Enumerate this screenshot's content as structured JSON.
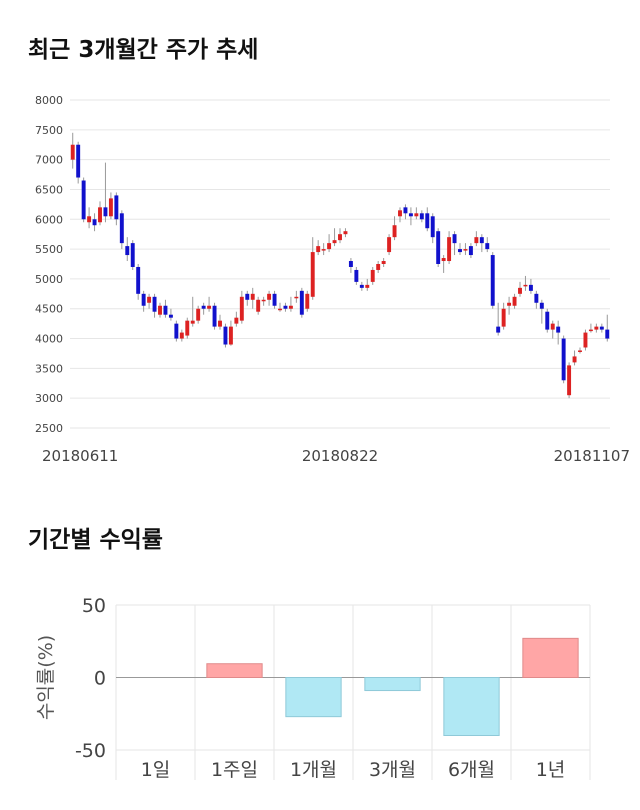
{
  "sections": {
    "price_title": "최근 3개월간 주가 추세",
    "returns_title": "기간별 수익률"
  },
  "chart_data": [
    {
      "type": "candlestick",
      "ylim": [
        2500,
        8000
      ],
      "y_ticks": [
        2500,
        3000,
        3500,
        4000,
        4500,
        5000,
        5500,
        6000,
        6500,
        7000,
        7500,
        8000
      ],
      "x_ticks": [
        "20180611",
        "20180822",
        "20181107"
      ],
      "up_color": "#dd2222",
      "down_color": "#1111cc",
      "candles": [
        [
          7000,
          7250,
          7450,
          6850
        ],
        [
          7250,
          6700,
          7300,
          6600
        ],
        [
          6650,
          6000,
          6700,
          5950
        ],
        [
          5950,
          6050,
          6200,
          5850
        ],
        [
          6000,
          5900,
          6100,
          5800
        ],
        [
          5950,
          6200,
          6300,
          5900
        ],
        [
          6200,
          6050,
          6950,
          5950
        ],
        [
          6050,
          6350,
          6450,
          6000
        ],
        [
          6400,
          6000,
          6450,
          5900
        ],
        [
          6100,
          5600,
          6150,
          5500
        ],
        [
          5550,
          5400,
          5700,
          5300
        ],
        [
          5600,
          5200,
          5650,
          5150
        ],
        [
          5200,
          4750,
          5250,
          4650
        ],
        [
          4750,
          4550,
          4800,
          4450
        ],
        [
          4600,
          4700,
          4750,
          4500
        ],
        [
          4700,
          4450,
          4750,
          4350
        ],
        [
          4400,
          4550,
          4600,
          4350
        ],
        [
          4550,
          4400,
          4650,
          4350
        ],
        [
          4400,
          4350,
          4500,
          4300
        ],
        [
          4250,
          4000,
          4300,
          3950
        ],
        [
          4000,
          4100,
          4150,
          3950
        ],
        [
          4050,
          4300,
          4350,
          4000
        ],
        [
          4250,
          4300,
          4700,
          4200
        ],
        [
          4300,
          4500,
          4550,
          4250
        ],
        [
          4550,
          4500,
          4600,
          4400
        ],
        [
          4500,
          4550,
          4700,
          4450
        ],
        [
          4550,
          4200,
          4600,
          4150
        ],
        [
          4200,
          4300,
          4400,
          4150
        ],
        [
          4200,
          3900,
          4250,
          3850
        ],
        [
          3900,
          4200,
          4300,
          3880
        ],
        [
          4250,
          4350,
          4450,
          4200
        ],
        [
          4300,
          4700,
          4800,
          4250
        ],
        [
          4750,
          4650,
          4800,
          4550
        ],
        [
          4650,
          4750,
          4850,
          4500
        ],
        [
          4450,
          4650,
          4700,
          4400
        ],
        [
          4650,
          4650,
          4700,
          4550
        ],
        [
          4650,
          4750,
          4800,
          4550
        ],
        [
          4750,
          4550,
          4800,
          4500
        ],
        [
          4500,
          4500,
          4600,
          4450
        ],
        [
          4550,
          4500,
          4600,
          4450
        ],
        [
          4500,
          4550,
          4700,
          4450
        ],
        [
          4700,
          4700,
          4800,
          4600
        ],
        [
          4800,
          4400,
          4850,
          4350
        ],
        [
          4500,
          4750,
          4800,
          4450
        ],
        [
          4700,
          5450,
          5700,
          4650
        ],
        [
          5450,
          5550,
          5650,
          5400
        ],
        [
          5500,
          5500,
          5600,
          5400
        ],
        [
          5500,
          5600,
          5750,
          5450
        ],
        [
          5600,
          5650,
          5850,
          5550
        ],
        [
          5650,
          5750,
          5850,
          5600
        ],
        [
          5750,
          5800,
          5850,
          5700
        ],
        [
          5300,
          5200,
          5350,
          5100
        ],
        [
          5150,
          4950,
          5200,
          4900
        ],
        [
          4900,
          4850,
          4950,
          4800
        ],
        [
          4850,
          4900,
          5000,
          4800
        ],
        [
          4950,
          5150,
          5200,
          4900
        ],
        [
          5150,
          5250,
          5300,
          5100
        ],
        [
          5250,
          5300,
          5350,
          5200
        ],
        [
          5450,
          5700,
          5750,
          5400
        ],
        [
          5700,
          5900,
          6050,
          5650
        ],
        [
          6050,
          6150,
          6200,
          5950
        ],
        [
          6200,
          6100,
          6250,
          6000
        ],
        [
          6100,
          6050,
          6200,
          5900
        ],
        [
          6050,
          6100,
          6200,
          6000
        ],
        [
          6100,
          6000,
          6150,
          5950
        ],
        [
          6100,
          5850,
          6200,
          5800
        ],
        [
          6050,
          5700,
          6100,
          5600
        ],
        [
          5800,
          5250,
          5850,
          5200
        ],
        [
          5300,
          5350,
          5400,
          5100
        ],
        [
          5300,
          5700,
          5800,
          5250
        ],
        [
          5750,
          5600,
          5800,
          5400
        ],
        [
          5500,
          5450,
          5600,
          5400
        ],
        [
          5500,
          5500,
          5600,
          5400
        ],
        [
          5550,
          5400,
          5600,
          5350
        ],
        [
          5600,
          5700,
          5800,
          5550
        ],
        [
          5700,
          5600,
          5750,
          5450
        ],
        [
          5600,
          5500,
          5700,
          5450
        ],
        [
          5400,
          4550,
          5450,
          4500
        ],
        [
          4200,
          4100,
          4600,
          4050
        ],
        [
          4200,
          4500,
          4600,
          4150
        ],
        [
          4550,
          4600,
          4700,
          4400
        ],
        [
          4550,
          4700,
          4750,
          4500
        ],
        [
          4750,
          4850,
          4950,
          4700
        ],
        [
          4900,
          4900,
          5050,
          4800
        ],
        [
          4900,
          4800,
          5000,
          4750
        ],
        [
          4750,
          4600,
          4800,
          4500
        ],
        [
          4600,
          4500,
          4650,
          4250
        ],
        [
          4450,
          4150,
          4500,
          4100
        ],
        [
          4150,
          4250,
          4300,
          4000
        ],
        [
          4200,
          4100,
          4300,
          3900
        ],
        [
          4000,
          3300,
          4050,
          3250
        ],
        [
          3050,
          3550,
          3600,
          3000
        ],
        [
          3600,
          3700,
          3800,
          3550
        ],
        [
          3800,
          3800,
          3850,
          3750
        ],
        [
          3850,
          4100,
          4150,
          3800
        ],
        [
          4150,
          4150,
          4250,
          4100
        ],
        [
          4150,
          4200,
          4250,
          4100
        ],
        [
          4200,
          4150,
          4250,
          4100
        ],
        [
          4150,
          4000,
          4400,
          3950
        ]
      ]
    },
    {
      "type": "bar",
      "categories": [
        "1일",
        "1주일",
        "1개월",
        "3개월",
        "6개월",
        "1년"
      ],
      "values": [
        0,
        9.5,
        -27,
        -9,
        -40,
        27
      ],
      "ylabel": "수익률(%)",
      "ylim": [
        -50,
        50
      ],
      "y_ticks": [
        50,
        0,
        -50
      ],
      "positive_color": "#ffa6a6",
      "negative_color": "#b0e8f4"
    }
  ]
}
